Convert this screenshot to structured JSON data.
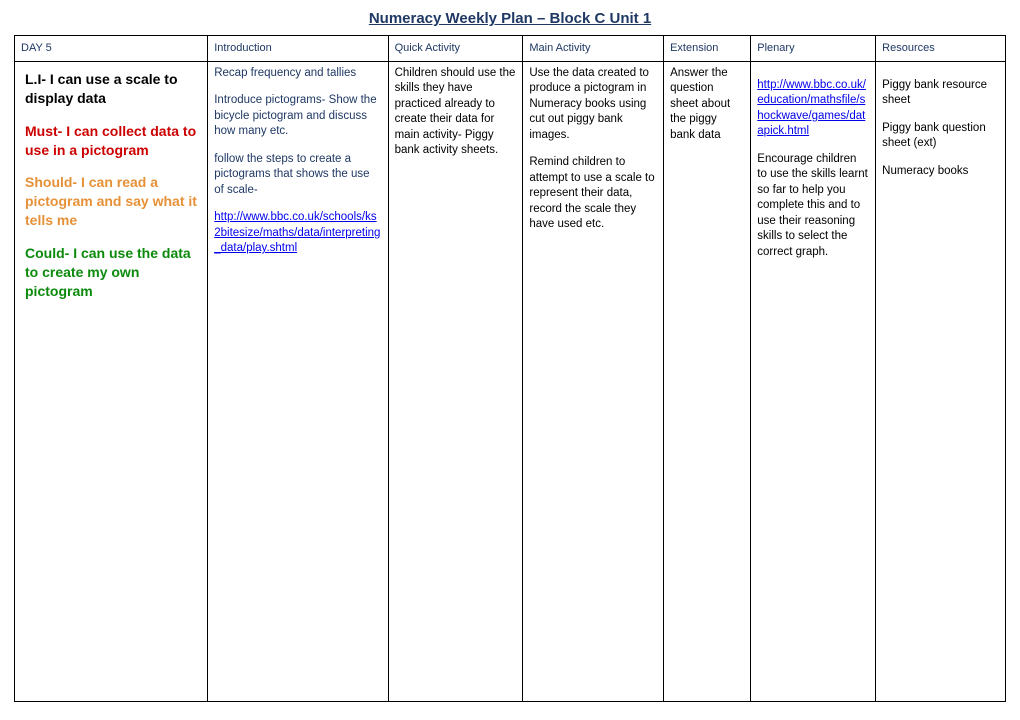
{
  "title": "Numeracy Weekly Plan – Block C Unit 1",
  "colors": {
    "title": "#1f3864",
    "header": "#1f3864",
    "intro_text": "#1f3864",
    "must": "#cc0000",
    "should": "#e69138",
    "could": "#0b8a0b",
    "link": "#0000ee",
    "black": "#000000",
    "border": "#000000",
    "background": "#ffffff"
  },
  "headers": {
    "day": "DAY 5",
    "introduction": "Introduction",
    "quick": "Quick Activity",
    "main": "Main Activity",
    "extension": "Extension",
    "plenary": "Plenary",
    "resources": "Resources"
  },
  "learning": {
    "li": "L.I- I can use a scale to display data",
    "must": "Must- I can collect data to use in a pictogram",
    "should": "Should- I can read a pictogram and say what it tells me",
    "could": "Could- I can use the data to create my own pictogram"
  },
  "introduction": {
    "p1": "Recap frequency and tallies",
    "p2": "Introduce pictograms- Show the bicycle pictogram and discuss how many etc.",
    "p3": "follow the steps to create a pictograms that shows the use of scale-",
    "link": "http://www.bbc.co.uk/schools/ks2bitesize/maths/data/interpreting_data/play.shtml"
  },
  "quick": {
    "p1": "Children should use the skills they have practiced already to create their data for main activity- Piggy bank activity sheets."
  },
  "main": {
    "p1": "Use the data created to produce a pictogram in Numeracy books using cut out piggy bank images.",
    "p2": "Remind children to attempt to use a scale to represent their data, record the scale they have used etc."
  },
  "extension": {
    "p1": "Answer the question sheet about the piggy bank data"
  },
  "plenary": {
    "link": "http://www.bbc.co.uk/education/mathsfile/shockwave/games/datapick.html",
    "p1": "Encourage children to use the skills learnt so far to help you complete this and to use their reasoning skills to select the correct graph."
  },
  "resources": {
    "p1": "Piggy bank resource sheet",
    "p2": "Piggy bank question sheet (ext)",
    "p3": "Numeracy books"
  }
}
